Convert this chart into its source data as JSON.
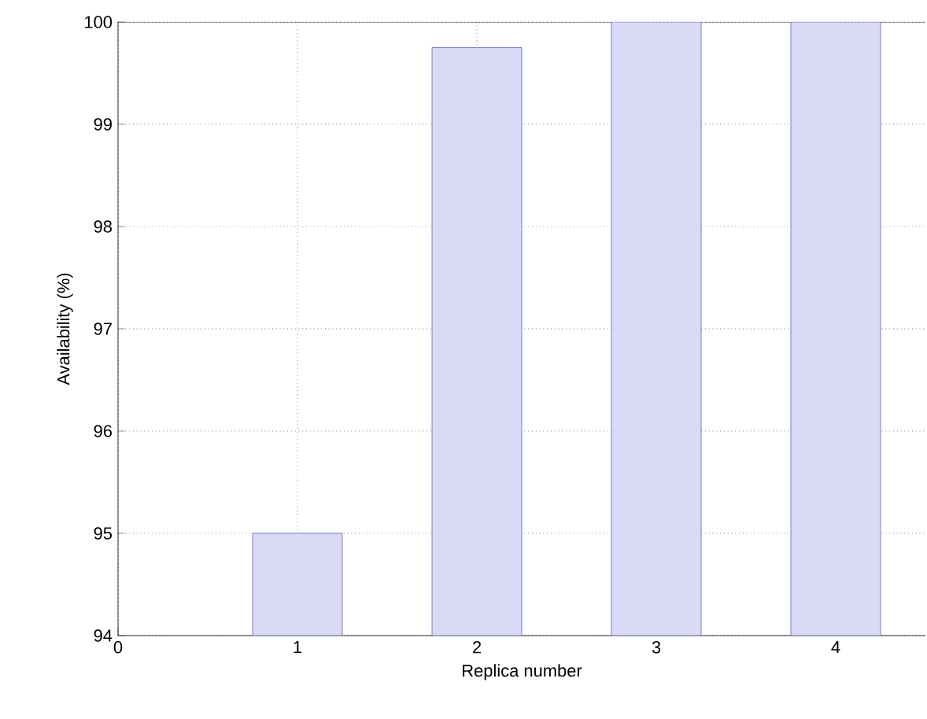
{
  "chart_data": {
    "type": "bar",
    "xlabel": "Replica number",
    "ylabel": "Availability (%)",
    "x": [
      1,
      2,
      3,
      4
    ],
    "values": [
      95,
      99.75,
      100,
      100
    ],
    "color": "#dadaf5",
    "xlim": [
      0,
      4.5
    ],
    "xticks": [
      0,
      1,
      2,
      3,
      4
    ],
    "ylim": [
      94,
      100
    ],
    "yticks": [
      94,
      95,
      96,
      97,
      98,
      99,
      100
    ],
    "grid": true
  }
}
